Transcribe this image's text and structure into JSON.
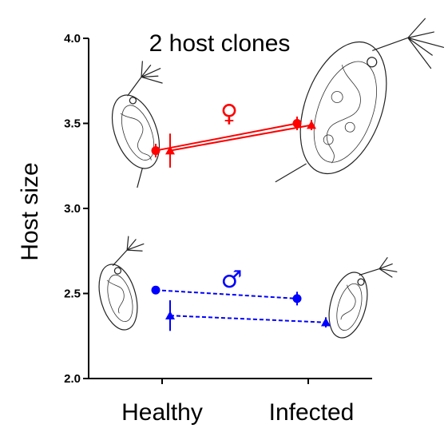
{
  "chart_data": {
    "type": "line",
    "title": "2 host clones",
    "ylabel": "Host size",
    "xlabel": "",
    "categories": [
      "Healthy",
      "Infected"
    ],
    "ylim": [
      2.0,
      4.0
    ],
    "yticks": [
      "2.0",
      "2.5",
      "3.0",
      "3.5",
      "4.0"
    ],
    "series": [
      {
        "group": "female",
        "marker": "circle",
        "color": "#ff0000",
        "dashed": false,
        "values": [
          3.34,
          3.5
        ],
        "err": [
          0.04,
          0.04
        ]
      },
      {
        "group": "female",
        "marker": "triangle",
        "color": "#ff0000",
        "dashed": false,
        "values": [
          3.34,
          3.49
        ],
        "err": [
          0.1,
          0.03
        ]
      },
      {
        "group": "male",
        "marker": "circle",
        "color": "#0000ff",
        "dashed": true,
        "values": [
          2.52,
          2.47
        ],
        "err": [
          0.02,
          0.04
        ]
      },
      {
        "group": "male",
        "marker": "triangle",
        "color": "#0000ff",
        "dashed": true,
        "values": [
          2.37,
          2.33
        ],
        "err": [
          0.09,
          0.03
        ]
      }
    ],
    "annotations": [
      {
        "symbol": "♀",
        "color": "#ff0000"
      },
      {
        "symbol": "♂",
        "color": "#0000ff"
      }
    ],
    "grid": false,
    "legend": "none"
  }
}
